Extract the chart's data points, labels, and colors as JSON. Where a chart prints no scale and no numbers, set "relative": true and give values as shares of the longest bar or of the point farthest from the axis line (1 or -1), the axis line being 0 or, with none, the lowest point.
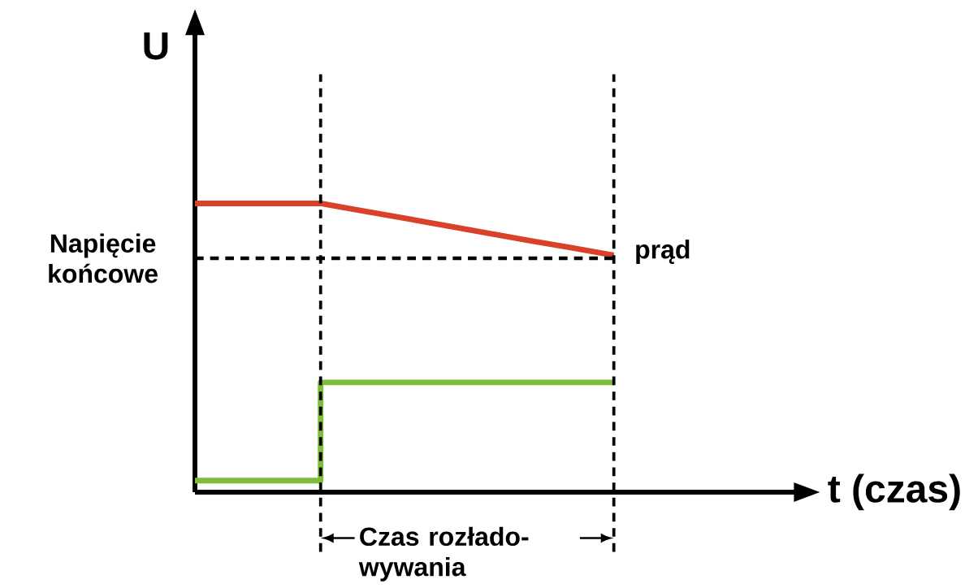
{
  "chart_data": {
    "type": "line",
    "relative": true,
    "ylabel": "U",
    "categories": [
      null,
      null,
      null,
      null,
      null,
      null,
      null,
      null,
      null,
      null,
      null
    ],
    "series": [
      {
        "color": "#d9412b",
        "values": [
          1,
          1,
          1,
          1,
          0.974,
          0.949,
          0.923,
          0.897,
          0.871,
          0.846,
          0.82
        ]
      },
      {
        "type": "step",
        "color": "#7dbd3a",
        "values": [
          0.04,
          0.04,
          0.04,
          0.38,
          0.38,
          0.38,
          0.38,
          0.38,
          0.38,
          0.38,
          0.38
        ]
      }
    ],
    "ref_lines": [
      {
        "axis": "y",
        "value": 0.81,
        "label": "Napięcie końcowe"
      }
    ],
    "annotations": [
      "prąd",
      "Czas rozłado-wywania",
      "t (czas)"
    ]
  }
}
